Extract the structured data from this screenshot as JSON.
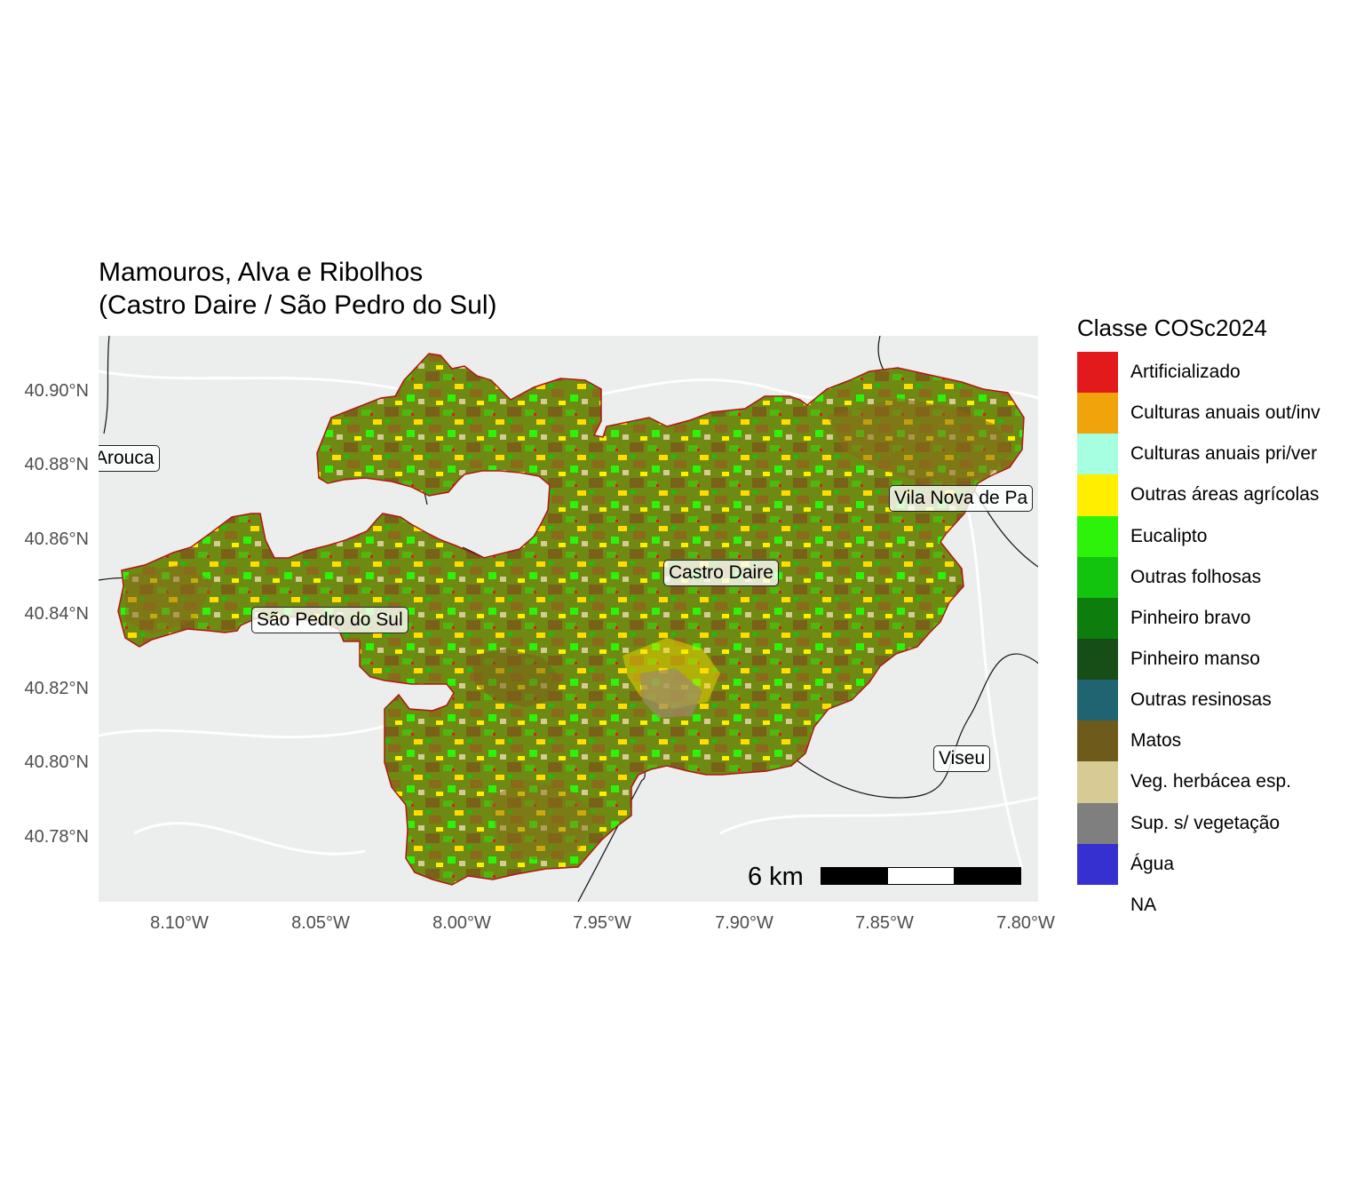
{
  "map": {
    "title_line1": "Mamouros, Alva e Ribolhos",
    "title_line2": "(Castro Daire / São Pedro do Sul)",
    "y_ticks": [
      "40.90°N",
      "40.88°N",
      "40.86°N",
      "40.84°N",
      "40.82°N",
      "40.80°N",
      "40.78°N"
    ],
    "x_ticks": [
      "8.10°W",
      "8.05°W",
      "8.00°W",
      "7.95°W",
      "7.90°W",
      "7.85°W",
      "7.80°W"
    ],
    "extent": {
      "lon_min": -8.128,
      "lon_max": -7.794,
      "lat_min": 40.764,
      "lat_max": 40.915
    },
    "place_labels": {
      "arouca": "Arouca",
      "vila_nova": "Vila Nova de Pa",
      "castro_daire": "Castro Daire",
      "sao_pedro": "São Pedro do Sul",
      "viseu": "Viseu"
    },
    "scale_bar": {
      "label": "6 km",
      "segment_colors": [
        "#000000",
        "#ffffff",
        "#000000"
      ]
    },
    "base_colors": {
      "background": "#eceeed",
      "boundary": "#111111",
      "aoi_outline": "#b01515"
    }
  },
  "legend": {
    "title": "Classe COSc2024",
    "items": [
      {
        "label": "Artificializado",
        "color": "#e31a1c"
      },
      {
        "label": "Culturas anuais out/inv",
        "color": "#f0a30a"
      },
      {
        "label": "Culturas anuais pri/ver",
        "color": "#a6ffe0"
      },
      {
        "label": "Outras áreas agrícolas",
        "color": "#ffee00"
      },
      {
        "label": "Eucalipto",
        "color": "#2df20a"
      },
      {
        "label": "Outras folhosas",
        "color": "#13c40f"
      },
      {
        "label": "Pinheiro bravo",
        "color": "#0d7e0d"
      },
      {
        "label": "Pinheiro manso",
        "color": "#174d16"
      },
      {
        "label": "Outras resinosas",
        "color": "#1f6470"
      },
      {
        "label": "Matos",
        "color": "#6e5b1c"
      },
      {
        "label": "Veg. herbácea esp.",
        "color": "#d6cb94"
      },
      {
        "label": "Sup. s/ vegetação",
        "color": "#7f7f7f"
      },
      {
        "label": "Água",
        "color": "#3530cf"
      },
      {
        "label": "NA",
        "color": ""
      }
    ]
  }
}
